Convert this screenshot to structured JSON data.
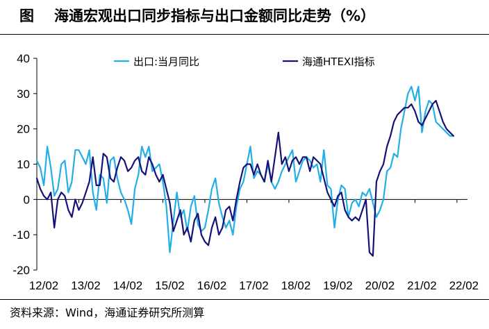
{
  "header": {
    "figure_label": "图",
    "title": "海通宏观出口同步指标与出口金额同比走势（%）"
  },
  "footer": {
    "source": "资料来源：Wind，海通证券研究所测算"
  },
  "colors": {
    "export": "#22aee6",
    "htexi": "#14127a",
    "axis": "#000000"
  },
  "chart_data": {
    "type": "line",
    "title": "海通宏观出口同步指标与出口金额同比走势（%）",
    "xlabel": "",
    "ylabel": "",
    "ylim": [
      -20,
      40
    ],
    "yticks": [
      -20,
      -10,
      0,
      10,
      20,
      30,
      40
    ],
    "xlim": [
      0,
      123
    ],
    "xtick_labels": [
      "12/02",
      "13/02",
      "14/02",
      "15/02",
      "16/02",
      "17/02",
      "18/02",
      "19/02",
      "20/02",
      "21/02",
      "22/02"
    ],
    "xtick_index": [
      0,
      12,
      24,
      36,
      48,
      60,
      72,
      84,
      96,
      108,
      120
    ],
    "grid": false,
    "legend": "top",
    "series": [
      {
        "name": "出口:当月同比",
        "color": "#22aee6",
        "values": [
          11,
          9,
          4,
          15,
          9,
          1,
          3,
          10,
          11,
          2,
          5,
          14,
          14,
          12,
          10,
          14,
          2,
          -3,
          7,
          6,
          -1,
          11,
          12,
          6,
          2,
          0,
          -3,
          -7,
          3,
          7,
          15,
          12,
          15,
          8,
          9,
          10,
          5,
          -2,
          -15,
          -6,
          2,
          -5,
          -3,
          -9,
          -2,
          1,
          -7,
          -9,
          -8,
          -3,
          3,
          6,
          -1,
          -5,
          -8,
          -6,
          -10,
          -2,
          3,
          5,
          10,
          15,
          6,
          8,
          7,
          5,
          10,
          5,
          3,
          5,
          8,
          10,
          12,
          14,
          5,
          8,
          11,
          12,
          11,
          9,
          10,
          5,
          14,
          4,
          3,
          -8,
          0,
          4,
          3,
          -5,
          -1,
          0,
          -2,
          2,
          1,
          3,
          -1,
          -5,
          -3,
          0,
          8,
          9,
          13,
          12,
          20,
          25,
          30,
          32,
          28,
          32,
          19,
          25,
          28,
          27,
          22,
          21,
          20,
          19,
          18,
          18
        ]
      },
      {
        "name": "海通HTEXI指标",
        "color": "#14127a",
        "values": [
          6,
          3,
          1,
          0,
          2,
          -8,
          0,
          2,
          1,
          -3,
          -5,
          0,
          -3,
          -1,
          2,
          5,
          12,
          4,
          4,
          13,
          12,
          6,
          5,
          9,
          12,
          11,
          8,
          9,
          11,
          12,
          8,
          7,
          12,
          10,
          7,
          5,
          7,
          3,
          -1,
          -9,
          -6,
          -3,
          -10,
          -8,
          -12,
          -6,
          -4,
          -10,
          -12,
          -13,
          -8,
          -5,
          -10,
          -8,
          -3,
          -2,
          -6,
          0,
          5,
          9,
          10,
          10,
          7,
          10,
          7,
          5,
          11,
          5,
          12,
          19,
          10,
          12,
          8,
          11,
          12,
          10,
          12,
          12,
          8,
          12,
          11,
          10,
          6,
          2,
          0,
          -2,
          1,
          2,
          -3,
          -5,
          -6,
          -5,
          -6,
          -3,
          0,
          -15,
          -16,
          5,
          8,
          10,
          15,
          18,
          22,
          24,
          25,
          26,
          26,
          27,
          25,
          22,
          21,
          23,
          25,
          27,
          28,
          25,
          22,
          20,
          19,
          18
        ]
      }
    ]
  }
}
